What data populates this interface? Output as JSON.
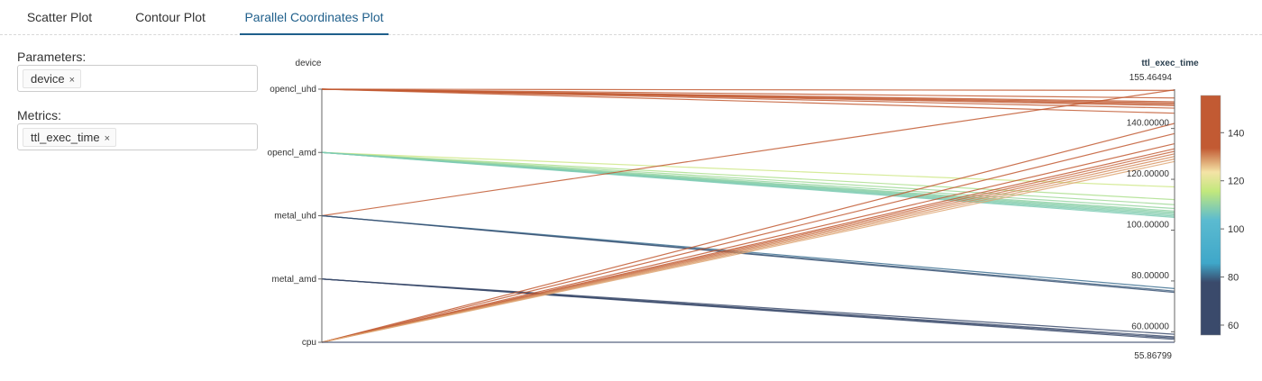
{
  "tabs": [
    {
      "label": "Scatter Plot",
      "active": false
    },
    {
      "label": "Contour Plot",
      "active": false
    },
    {
      "label": "Parallel Coordinates Plot",
      "active": true
    }
  ],
  "parameters": {
    "label": "Parameters:",
    "chips": [
      "device"
    ]
  },
  "metrics": {
    "label": "Metrics:",
    "chips": [
      "ttl_exec_time"
    ]
  },
  "chip_remove_icon": "×",
  "chart_data": {
    "type": "parallel_coordinates",
    "dimensions": [
      {
        "label": "device",
        "categories": [
          "opencl_uhd",
          "opencl_amd",
          "metal_uhd",
          "metal_amd",
          "cpu"
        ]
      },
      {
        "label": "ttl_exec_time",
        "range": [
          55.86799,
          155.46494
        ],
        "ticks": [
          "140.00000",
          "120.00000",
          "100.00000",
          "80.00000",
          "60.00000"
        ],
        "tick_values": [
          140,
          120,
          100,
          80,
          60
        ],
        "min_label": "55.86799",
        "max_label": "155.46494"
      }
    ],
    "colorbar": {
      "ticks": [
        140,
        120,
        100,
        80,
        60
      ],
      "range": [
        55.86799,
        155.46494
      ]
    },
    "lines": [
      {
        "device": "opencl_uhd",
        "ttl_exec_time": 155.0
      },
      {
        "device": "opencl_uhd",
        "ttl_exec_time": 152.0
      },
      {
        "device": "opencl_uhd",
        "ttl_exec_time": 150.5
      },
      {
        "device": "opencl_uhd",
        "ttl_exec_time": 150.0
      },
      {
        "device": "opencl_uhd",
        "ttl_exec_time": 149.5
      },
      {
        "device": "opencl_uhd",
        "ttl_exec_time": 149.0
      },
      {
        "device": "opencl_uhd",
        "ttl_exec_time": 148.0
      },
      {
        "device": "opencl_uhd",
        "ttl_exec_time": 146.0
      },
      {
        "device": "opencl_amd",
        "ttl_exec_time": 117.0
      },
      {
        "device": "opencl_amd",
        "ttl_exec_time": 112.0
      },
      {
        "device": "opencl_amd",
        "ttl_exec_time": 110.0
      },
      {
        "device": "opencl_amd",
        "ttl_exec_time": 108.5
      },
      {
        "device": "opencl_amd",
        "ttl_exec_time": 107.5
      },
      {
        "device": "opencl_amd",
        "ttl_exec_time": 107.0
      },
      {
        "device": "opencl_amd",
        "ttl_exec_time": 106.5
      },
      {
        "device": "opencl_amd",
        "ttl_exec_time": 106.0
      },
      {
        "device": "opencl_amd",
        "ttl_exec_time": 105.5
      },
      {
        "device": "opencl_amd",
        "ttl_exec_time": 105.0
      },
      {
        "device": "metal_uhd",
        "ttl_exec_time": 155.2
      },
      {
        "device": "metal_uhd",
        "ttl_exec_time": 77.0
      },
      {
        "device": "metal_uhd",
        "ttl_exec_time": 76.0
      },
      {
        "device": "metal_uhd",
        "ttl_exec_time": 75.5
      },
      {
        "device": "metal_amd",
        "ttl_exec_time": 59.0
      },
      {
        "device": "metal_amd",
        "ttl_exec_time": 58.0
      },
      {
        "device": "metal_amd",
        "ttl_exec_time": 57.5
      },
      {
        "device": "metal_amd",
        "ttl_exec_time": 57.0
      },
      {
        "device": "cpu",
        "ttl_exec_time": 142.0
      },
      {
        "device": "cpu",
        "ttl_exec_time": 138.0
      },
      {
        "device": "cpu",
        "ttl_exec_time": 134.0
      },
      {
        "device": "cpu",
        "ttl_exec_time": 132.0
      },
      {
        "device": "cpu",
        "ttl_exec_time": 131.0
      },
      {
        "device": "cpu",
        "ttl_exec_time": 130.0
      },
      {
        "device": "cpu",
        "ttl_exec_time": 129.0
      },
      {
        "device": "cpu",
        "ttl_exec_time": 128.0
      },
      {
        "device": "cpu",
        "ttl_exec_time": 127.0
      },
      {
        "device": "cpu",
        "ttl_exec_time": 55.86799
      }
    ]
  },
  "colors": {
    "accent": "#1f5f8b",
    "colorscale": [
      "#3a4a6b",
      "#3fa7c9",
      "#c2e87c",
      "#f4e3a6",
      "#c25a33"
    ]
  }
}
